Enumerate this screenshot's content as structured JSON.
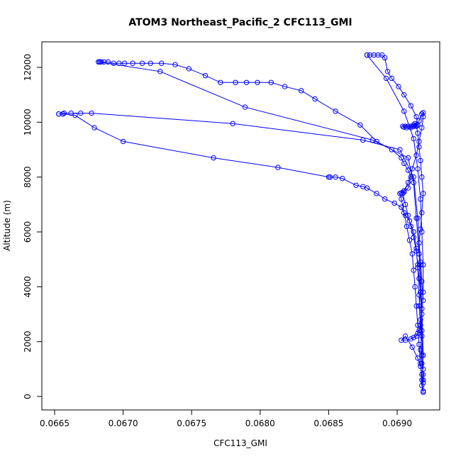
{
  "chart_data": {
    "type": "line",
    "title": "ATOM3 Northeast_Pacific_2 CFC113_GMI",
    "xlabel": "CFC113_GMI",
    "ylabel": "Altitude (m)",
    "xlim": [
      0.0665,
      0.0692
    ],
    "ylim": [
      0,
      12400
    ],
    "xticks": [
      0.0665,
      0.067,
      0.0675,
      0.068,
      0.0685,
      0.069
    ],
    "xtick_labels": [
      "0.0665",
      "0.0670",
      "0.0675",
      "0.0680",
      "0.0685",
      "0.0690"
    ],
    "yticks": [
      0,
      2000,
      4000,
      6000,
      8000,
      10000,
      12000
    ],
    "ytick_labels": [
      "0",
      "2000",
      "4000",
      "6000",
      "8000",
      "10000",
      "12000"
    ],
    "grid": false,
    "legend": "none",
    "marker": "open-circle",
    "color": "#0000ff",
    "series": [
      {
        "x": [
          0.06919,
          0.06918,
          0.06919,
          0.06918,
          0.06917,
          0.06918,
          0.06917,
          0.06916,
          0.06917,
          0.06916,
          0.06915,
          0.06914,
          0.06912,
          0.0691,
          0.06908,
          0.06906,
          0.06904,
          0.06903,
          0.06905,
          0.06908,
          0.0691,
          0.06908,
          0.06905,
          0.06903,
          0.06896,
          0.06885,
          0.06873,
          0.06855,
          0.0684,
          0.0683,
          0.06818,
          0.06808,
          0.06798,
          0.0679,
          0.06782,
          0.06771,
          0.0676,
          0.06748,
          0.06738,
          0.06728,
          0.0672,
          0.06714,
          0.06707,
          0.06701,
          0.06697,
          0.06693,
          0.06689,
          0.06686,
          0.06684,
          0.06683,
          0.06683,
          0.06682
        ],
        "y": [
          150,
          400,
          800,
          1200,
          1700,
          2200,
          2800,
          3300,
          3800,
          4300,
          4800,
          5300,
          5800,
          6200,
          6600,
          7000,
          7400,
          7420,
          7450,
          7600,
          8000,
          8250,
          8500,
          8700,
          9000,
          9300,
          9900,
          10400,
          10850,
          11150,
          11300,
          11450,
          11450,
          11450,
          11450,
          11450,
          11700,
          11950,
          12100,
          12150,
          12150,
          12150,
          12150,
          12150,
          12150,
          12150,
          12200,
          12200,
          12200,
          12200,
          12200,
          12200
        ]
      },
      {
        "x": [
          0.06682,
          0.06727,
          0.06789,
          0.06882,
          0.06908,
          0.06912,
          0.06914,
          0.06916,
          0.06917,
          0.06918,
          0.06919
        ],
        "y": [
          12200,
          11850,
          10550,
          9350,
          8700,
          7800,
          6500,
          5200,
          3800,
          2400,
          1000
        ]
      },
      {
        "x": [
          0.06919,
          0.06918,
          0.06917,
          0.06916,
          0.06915,
          0.06914,
          0.06912,
          0.06909,
          0.06906,
          0.06903,
          0.06898,
          0.06891,
          0.06885,
          0.06878,
          0.06875,
          0.0687,
          0.0686,
          0.06855,
          0.06851,
          0.0685,
          0.06813,
          0.06766,
          0.067,
          0.06679,
          0.06665,
          0.06656,
          0.06653
        ],
        "y": [
          600,
          1500,
          2600,
          3700,
          4700,
          5400,
          6000,
          6400,
          6600,
          6900,
          7050,
          7200,
          7400,
          7600,
          7650,
          7700,
          7950,
          8000,
          8000,
          8000,
          8350,
          8700,
          9300,
          9800,
          10250,
          10300,
          10300
        ]
      },
      {
        "x": [
          0.06653,
          0.06657,
          0.06662,
          0.06669,
          0.06677,
          0.0678,
          0.06875,
          0.06902,
          0.06912,
          0.06915,
          0.06917,
          0.06918,
          0.06919
        ],
        "y": [
          10300,
          10330,
          10330,
          10330,
          10330,
          9950,
          9350,
          9000,
          8000,
          6500,
          4800,
          3200,
          1500
        ]
      },
      {
        "x": [
          0.06919,
          0.06918,
          0.06917,
          0.06916,
          0.06915,
          0.06914,
          0.06913,
          0.06912,
          0.06911,
          0.06909,
          0.06907,
          0.06905,
          0.06903,
          0.06902,
          0.06905,
          0.06908,
          0.06911,
          0.06914,
          0.06916,
          0.06918,
          0.06919,
          0.06919,
          0.06918
        ],
        "y": [
          200,
          600,
          1200,
          1900,
          2600,
          3300,
          4000,
          4600,
          5200,
          5700,
          6200,
          6700,
          7200,
          7400,
          7500,
          7800,
          8300,
          8800,
          9300,
          9800,
          10200,
          10350,
          10300
        ]
      },
      {
        "x": [
          0.06918,
          0.06916,
          0.06914,
          0.06912,
          0.0691,
          0.06908,
          0.06906,
          0.06904,
          0.06905,
          0.06907,
          0.0691,
          0.06912,
          0.06914,
          0.06915,
          0.06914,
          0.0691,
          0.06905,
          0.06901,
          0.06896,
          0.06893,
          0.06891,
          0.06889,
          0.06886,
          0.06883,
          0.0688,
          0.06878
        ],
        "y": [
          10300,
          10050,
          9850,
          9850,
          9850,
          9850,
          9850,
          9850,
          9820,
          9800,
          9800,
          9850,
          9850,
          9900,
          10200,
          10600,
          11000,
          11300,
          11600,
          11850,
          12350,
          12450,
          12450,
          12450,
          12450,
          12450
        ]
      },
      {
        "x": [
          0.06878,
          0.06892,
          0.06905,
          0.06912,
          0.06915,
          0.06917,
          0.06918,
          0.06919,
          0.06919,
          0.06918,
          0.06917,
          0.06916,
          0.06915,
          0.06914,
          0.06912,
          0.0691,
          0.06906,
          0.06903,
          0.06906,
          0.06911,
          0.06915,
          0.06917,
          0.06918,
          0.06919
        ],
        "y": [
          12450,
          11600,
          10400,
          9400,
          8300,
          7200,
          6000,
          4800,
          3800,
          3000,
          2600,
          2400,
          2300,
          2200,
          2150,
          2100,
          2050,
          2050,
          2200,
          1800,
          1400,
          1100,
          800,
          500
        ]
      },
      {
        "x": [
          0.06919,
          0.06918,
          0.06917,
          0.06916,
          0.06917,
          0.06918,
          0.06919,
          0.06918,
          0.06917,
          0.06916,
          0.06915,
          0.06914,
          0.06913,
          0.06912
        ],
        "y": [
          3500,
          4200,
          4900,
          5600,
          6100,
          6700,
          7400,
          8000,
          8600,
          9100,
          9600,
          9900,
          9950,
          9900
        ]
      }
    ]
  }
}
